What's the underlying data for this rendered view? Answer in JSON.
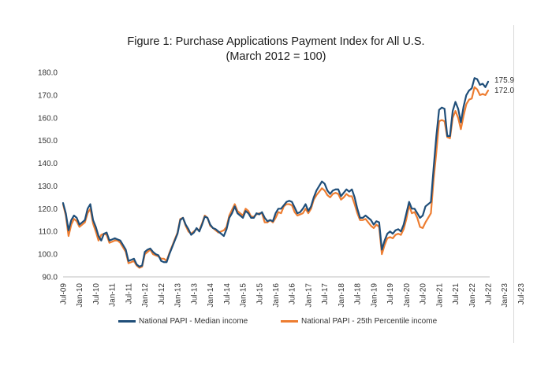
{
  "chart_data": {
    "type": "line",
    "title": "Figure 1: Purchase Applications Payment Index for All U.S.",
    "subtitle": "(March 2012 = 100)",
    "xlabel": "",
    "ylabel": "",
    "ylim": [
      90,
      180
    ],
    "yticks": [
      "90.0",
      "100.0",
      "110.0",
      "120.0",
      "130.0",
      "140.0",
      "150.0",
      "160.0",
      "170.0",
      "180.0"
    ],
    "xticks": [
      "Jul-09",
      "Jan-10",
      "Jul-10",
      "Jan-11",
      "Jul-11",
      "Jan-12",
      "Jul-12",
      "Jan-13",
      "Jul-13",
      "Jan-14",
      "Jul-14",
      "Jan-15",
      "Jul-15",
      "Jan-16",
      "Jul-16",
      "Jan-17",
      "Jul-17",
      "Jan-18",
      "Jul-18",
      "Jan-19",
      "Jul-19",
      "Jan-20",
      "Jul-20",
      "Jan-21",
      "Jul-21",
      "Jan-22",
      "Jul-22",
      "Jan-23",
      "Jul-23"
    ],
    "start": "Jul-09",
    "grid": false,
    "legend_position": "bottom",
    "end_labels": [
      "175.9",
      "172.0"
    ],
    "series": [
      {
        "name": "National PAPI - Median income",
        "color": "#1f4e79",
        "values": [
          122.5,
          118.0,
          110.5,
          115.0,
          117.0,
          116.0,
          113.0,
          114.0,
          115.0,
          120.0,
          122.0,
          115.0,
          112.0,
          108.0,
          106.0,
          109.0,
          109.5,
          106.0,
          106.5,
          107.0,
          106.5,
          106.0,
          104.0,
          102.0,
          97.0,
          97.5,
          98.0,
          95.5,
          94.5,
          95.0,
          101.0,
          102.0,
          102.5,
          101.0,
          100.0,
          99.5,
          97.0,
          96.5,
          96.5,
          100.0,
          103.0,
          106.0,
          109.0,
          115.0,
          116.0,
          113.0,
          111.0,
          108.5,
          109.5,
          111.5,
          110.0,
          113.0,
          116.5,
          116.0,
          113.0,
          111.5,
          111.0,
          110.0,
          109.0,
          108.0,
          111.0,
          116.0,
          118.0,
          121.0,
          118.0,
          117.0,
          116.0,
          119.0,
          118.0,
          116.0,
          116.0,
          118.0,
          117.5,
          118.5,
          116.0,
          114.5,
          115.0,
          114.5,
          118.0,
          120.0,
          120.0,
          121.5,
          123.0,
          123.5,
          123.0,
          120.5,
          118.0,
          118.5,
          120.0,
          122.0,
          119.0,
          121.0,
          125.0,
          128.0,
          130.0,
          132.0,
          131.0,
          128.0,
          126.5,
          128.0,
          128.5,
          128.5,
          125.5,
          127.0,
          128.5,
          127.5,
          128.5,
          125.0,
          120.0,
          116.0,
          116.0,
          117.0,
          116.0,
          115.0,
          113.0,
          114.5,
          114.0,
          102.0,
          106.0,
          109.0,
          110.0,
          109.0,
          110.5,
          111.0,
          110.0,
          113.0,
          118.0,
          123.0,
          120.0,
          120.0,
          118.0,
          116.0,
          117.0,
          121.0,
          122.0,
          123.0,
          138.0,
          152.0,
          163.5,
          164.5,
          164.0,
          152.0,
          152.0,
          163.0,
          167.0,
          164.0,
          158.0,
          165.0,
          170.0,
          172.0,
          173.0,
          177.5,
          177.0,
          174.5,
          175.0,
          173.5,
          175.9
        ]
      },
      {
        "name": "National PAPI - 25th Percentile income",
        "color": "#ed7d31",
        "values": [
          122.0,
          117.0,
          108.0,
          113.0,
          115.5,
          114.5,
          112.0,
          113.0,
          114.0,
          118.0,
          120.0,
          113.5,
          110.0,
          106.0,
          108.5,
          109.0,
          108.5,
          105.0,
          105.5,
          106.0,
          106.0,
          105.0,
          103.0,
          101.0,
          96.0,
          96.5,
          97.0,
          95.0,
          94.0,
          94.5,
          100.0,
          101.0,
          102.0,
          100.0,
          99.5,
          99.0,
          98.0,
          98.0,
          97.0,
          100.5,
          103.5,
          106.5,
          109.5,
          115.5,
          116.0,
          112.5,
          110.0,
          109.0,
          110.0,
          111.0,
          110.5,
          113.5,
          117.0,
          116.0,
          112.5,
          111.5,
          110.5,
          109.5,
          110.0,
          110.5,
          112.0,
          117.0,
          119.5,
          122.0,
          119.0,
          118.0,
          117.0,
          120.0,
          119.0,
          116.5,
          116.5,
          117.5,
          118.0,
          118.0,
          114.0,
          114.0,
          115.0,
          114.0,
          116.0,
          118.5,
          118.0,
          121.0,
          122.0,
          122.0,
          121.5,
          118.5,
          117.0,
          117.5,
          118.0,
          120.0,
          118.0,
          120.0,
          124.0,
          126.0,
          127.5,
          129.0,
          128.0,
          126.0,
          125.0,
          126.5,
          127.0,
          126.5,
          124.0,
          125.0,
          126.5,
          125.5,
          125.5,
          122.0,
          118.0,
          115.0,
          115.0,
          115.5,
          114.0,
          112.5,
          111.5,
          113.0,
          112.0,
          100.0,
          104.0,
          107.0,
          107.5,
          107.0,
          108.5,
          109.0,
          108.5,
          111.0,
          115.5,
          121.5,
          118.0,
          118.5,
          116.0,
          112.0,
          111.5,
          114.0,
          116.0,
          118.0,
          133.0,
          145.0,
          158.5,
          159.0,
          158.5,
          151.5,
          151.0,
          160.0,
          163.0,
          160.0,
          155.0,
          161.0,
          166.0,
          168.0,
          168.5,
          173.5,
          172.5,
          170.0,
          170.5,
          170.0,
          172.0
        ]
      }
    ]
  }
}
